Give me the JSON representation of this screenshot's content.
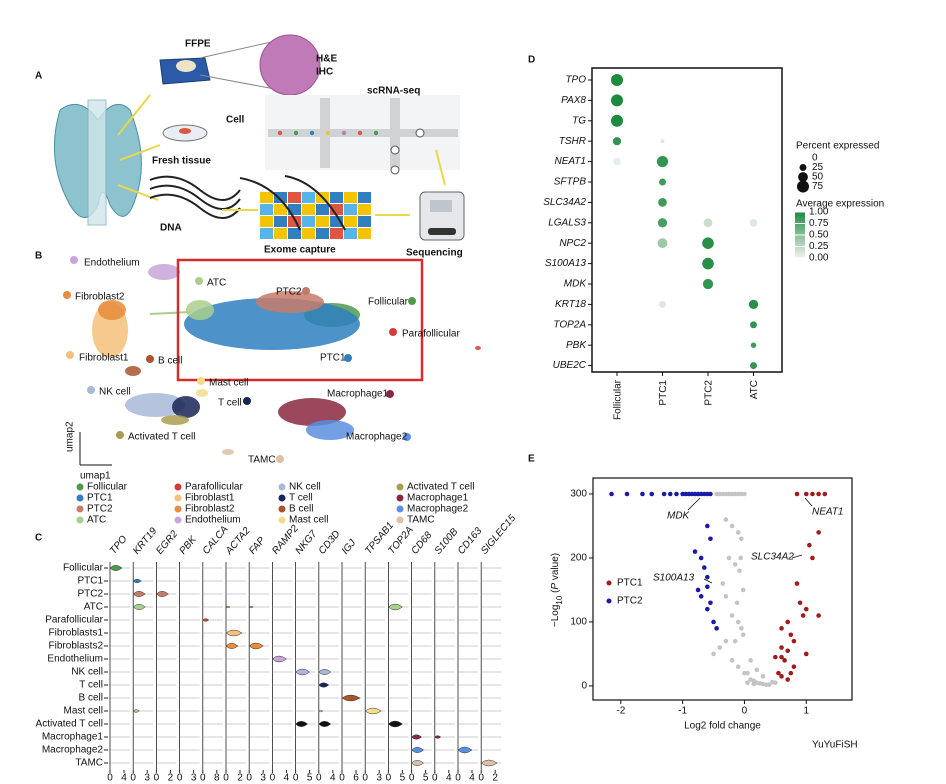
{
  "panel_labels": [
    "A",
    "B",
    "C",
    "D",
    "E"
  ],
  "panel_a": {
    "ffpe": "FFPE",
    "he": "H&E",
    "ihc": "IHC",
    "scrna": "scRNA-seq",
    "cell": "Cell",
    "fresh_tissue": "Fresh tissue",
    "dna": "DNA",
    "exome": "Exome capture",
    "sequencing": "Sequencing"
  },
  "panel_b": {
    "umap_x": "umap1",
    "umap_y": "umap2",
    "clusters": [
      {
        "name": "Follicular",
        "color": "#4e9a4b"
      },
      {
        "name": "PTC1",
        "color": "#2f7fc1"
      },
      {
        "name": "PTC2",
        "color": "#c57b6a"
      },
      {
        "name": "ATC",
        "color": "#a9cf8d"
      },
      {
        "name": "Parafollicular",
        "color": "#d63a3a"
      },
      {
        "name": "Fibroblast1",
        "color": "#f5c07a"
      },
      {
        "name": "Fibroblast2",
        "color": "#e78b3c"
      },
      {
        "name": "Endothelium",
        "color": "#c8a5d8"
      },
      {
        "name": "NK cell",
        "color": "#a9b8d9"
      },
      {
        "name": "T cell",
        "color": "#1a2556"
      },
      {
        "name": "B cell",
        "color": "#a9542b"
      },
      {
        "name": "Mast cell",
        "color": "#f2dc8a"
      },
      {
        "name": "Activated T cell",
        "color": "#aa9d4f"
      },
      {
        "name": "Macrophage1",
        "color": "#8b2840"
      },
      {
        "name": "Macrophage2",
        "color": "#5b8ee0"
      },
      {
        "name": "TAMC",
        "color": "#dcc0a7"
      }
    ]
  },
  "panel_c": {
    "genes": [
      "TPO",
      "KRT19",
      "EGR2",
      "PBK",
      "CALCA",
      "ACTA2",
      "FAP",
      "RAMP2",
      "NKG7",
      "CD3D",
      "IGJ",
      "TPSAB1",
      "TOP2A",
      "CD68",
      "S100B",
      "CD163",
      "SIGLEC15"
    ],
    "cell_types": [
      "Follicular",
      "PTC1",
      "PTC2",
      "ATC",
      "Parafollicular",
      "Fibroblasts1",
      "Fibroblasts2",
      "Endothelium",
      "NK cell",
      "T cell",
      "B cell",
      "Mast cell",
      "Activated T cell",
      "Macrophage1",
      "Macrophage2",
      "TAMC"
    ],
    "xticks": [
      [
        0,
        4
      ],
      [
        0,
        3
      ],
      [
        0,
        2
      ],
      [
        0,
        3
      ],
      [
        0,
        8
      ],
      [
        0,
        2
      ],
      [
        0,
        3
      ],
      [
        0,
        4
      ],
      [
        0,
        5
      ],
      [
        0,
        4
      ],
      [
        0,
        6
      ],
      [
        0,
        3
      ],
      [
        0,
        5
      ],
      [
        0,
        5
      ],
      [
        0,
        4
      ],
      [
        0,
        4
      ],
      [
        0,
        2
      ]
    ]
  },
  "panel_d": {
    "genes": [
      "TPO",
      "PAX8",
      "TG",
      "TSHR",
      "NEAT1",
      "SFTPB",
      "SLC34A2",
      "LGALS3",
      "NPC2",
      "S100A13",
      "MDK",
      "KRT18",
      "TOP2A",
      "PBK",
      "UBE2C"
    ],
    "groups": [
      "Follicular",
      "PTC1",
      "PTC2",
      "ATC"
    ],
    "percent": [
      [
        75,
        0,
        0,
        0
      ],
      [
        75,
        0,
        0,
        0
      ],
      [
        75,
        0,
        0,
        0
      ],
      [
        35,
        8,
        0,
        0
      ],
      [
        30,
        65,
        0,
        0
      ],
      [
        0,
        25,
        0,
        0
      ],
      [
        0,
        40,
        0,
        0
      ],
      [
        0,
        45,
        40,
        30
      ],
      [
        0,
        50,
        70,
        0
      ],
      [
        0,
        0,
        70,
        0
      ],
      [
        0,
        0,
        55,
        0
      ],
      [
        0,
        25,
        0,
        45
      ],
      [
        0,
        0,
        0,
        25
      ],
      [
        0,
        0,
        0,
        15
      ],
      [
        0,
        0,
        0,
        25
      ]
    ],
    "average": [
      [
        1,
        0,
        0,
        0
      ],
      [
        1,
        0,
        0,
        0
      ],
      [
        1,
        0,
        0,
        0
      ],
      [
        0.9,
        0.1,
        0,
        0
      ],
      [
        0.05,
        0.9,
        0,
        0
      ],
      [
        0,
        0.85,
        0,
        0
      ],
      [
        0,
        0.85,
        0,
        0
      ],
      [
        0,
        0.8,
        0.2,
        0.1
      ],
      [
        0,
        0.4,
        0.95,
        0
      ],
      [
        0,
        0,
        0.95,
        0
      ],
      [
        0,
        0,
        0.9,
        0
      ],
      [
        0,
        0.1,
        0,
        0.95
      ],
      [
        0,
        0,
        0,
        0.9
      ],
      [
        0,
        0,
        0,
        0.85
      ],
      [
        0,
        0,
        0,
        0.9
      ]
    ],
    "size_legend_title": "Percent expressed",
    "size_ticks": [
      0,
      25,
      50,
      75
    ],
    "color_legend_title": "Average expression",
    "color_ticks": [
      {
        "value": 1,
        "label": "1.00"
      },
      {
        "value": 0.75,
        "label": "0.75"
      },
      {
        "value": 0.5,
        "label": "0.50"
      },
      {
        "value": 0.25,
        "label": "0.25"
      },
      {
        "value": 0,
        "label": "0.00"
      }
    ],
    "color_low": "#f2f2f2",
    "color_high": "#1e8a3e"
  },
  "panel_e": {
    "xlabel": "Log2 fold change",
    "ylabel": [
      "−Log",
      "10",
      " (",
      "P",
      " value)"
    ],
    "xlim": [
      -2.45,
      1.74
    ],
    "ylim": [
      -22,
      325
    ],
    "xticks": [
      -2,
      -1,
      0,
      1
    ],
    "yticks": [
      0,
      100,
      200,
      300
    ],
    "annotations": [
      "MDK",
      "NEAT1",
      "SLC34A2",
      "S100A13"
    ],
    "series": [
      {
        "name": "PTC1",
        "color": "#a31a1a",
        "x": [
          0.85,
          1.0,
          1.1,
          1.2,
          1.3,
          1.2,
          1.05,
          1.1,
          0.85,
          0.9,
          1.0,
          0.7,
          0.6,
          0.75,
          0.8,
          1.2,
          0.95,
          0.6,
          0.7,
          0.5,
          0.65,
          0.8,
          0.55,
          0.6,
          0.7,
          0.75,
          0.6,
          1.0
        ],
        "y": [
          300,
          300,
          300,
          300,
          300,
          240,
          220,
          200,
          160,
          130,
          120,
          100,
          90,
          80,
          70,
          110,
          110,
          60,
          55,
          45,
          40,
          30,
          20,
          15,
          10,
          20,
          45,
          50
        ]
      },
      {
        "name": "PTC2",
        "color": "#1a1aa8",
        "x": [
          -2.15,
          -1.9,
          -1.65,
          -1.5,
          -1.3,
          -1.2,
          -1.1,
          -1.0,
          -0.95,
          -0.9,
          -0.85,
          -0.8,
          -0.75,
          -0.7,
          -0.65,
          -0.6,
          -0.55,
          -0.6,
          -0.55,
          -0.7,
          -0.65,
          -0.75,
          -0.6,
          -0.7,
          -0.55,
          -0.6,
          -0.5,
          -0.45,
          -0.8,
          -0.6
        ],
        "y": [
          300,
          300,
          300,
          300,
          300,
          300,
          300,
          300,
          300,
          300,
          300,
          300,
          300,
          300,
          300,
          300,
          300,
          250,
          230,
          200,
          185,
          150,
          155,
          140,
          130,
          120,
          100,
          90,
          210,
          170
        ]
      }
    ],
    "background": {
      "color": "#c4c4c4",
      "x": [
        -0.45,
        -0.4,
        -0.35,
        -0.3,
        -0.25,
        -0.2,
        -0.15,
        -0.1,
        -0.05,
        0,
        -0.3,
        -0.2,
        -0.1,
        -0.05,
        -0.25,
        -0.15,
        -0.08,
        -0.35,
        -0.3,
        -0.12,
        -0.2,
        -0.1,
        -0.05,
        -0.02,
        0.05,
        0.1,
        0.15,
        0.2,
        0.25,
        0.3,
        0.35,
        0.4,
        0.1,
        0.2,
        0.3,
        0.45,
        0.5,
        -0.5,
        -0.4,
        -0.3,
        -0.2,
        -0.1,
        0,
        0.05,
        0.15,
        -0.02,
        -0.06,
        -0.15
      ],
      "y": [
        300,
        300,
        300,
        300,
        300,
        300,
        300,
        300,
        300,
        300,
        260,
        250,
        240,
        230,
        200,
        190,
        180,
        160,
        140,
        130,
        110,
        100,
        90,
        80,
        20,
        10,
        8,
        5,
        4,
        3,
        2,
        2,
        40,
        25,
        15,
        6,
        5,
        50,
        60,
        70,
        40,
        30,
        20,
        5,
        3,
        150,
        200,
        70
      ]
    }
  },
  "watermark": "YuYuFiSH"
}
